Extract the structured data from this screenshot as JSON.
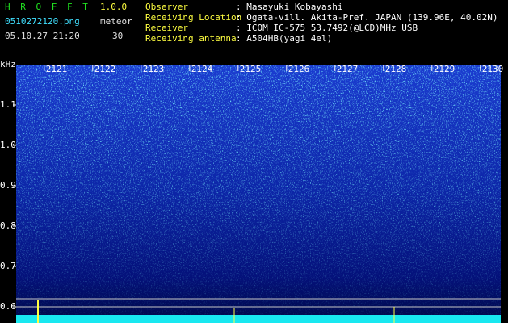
{
  "header": {
    "app": "H R O F F T",
    "version": "1.0.0",
    "file": "0510272120.png",
    "mode": "meteor",
    "datetime": "05.10.27 21:20",
    "count": "30",
    "fields": [
      {
        "label": "Observer",
        "value": ": Masayuki Kobayashi"
      },
      {
        "label": "Receiving Location",
        "value": ": Ogata-vill. Akita-Pref. JAPAN (139.96E, 40.02N)"
      },
      {
        "label": "Receiver",
        "value": ": ICOM IC-575 53.7492(@LCD)MHz USB"
      },
      {
        "label": "Receiving antenna",
        "value": ": A504HB(yagi 4el)"
      }
    ]
  },
  "chart_data": {
    "type": "spectrogram",
    "y_label": "kHz",
    "ylim": [
      0.564,
      1.2
    ],
    "yticks": [
      0.6,
      0.7,
      0.8,
      0.9,
      {
        "value": 1,
        "label": "1.0"
      },
      1.1
    ],
    "xlim": [
      2120.42,
      2130.42
    ],
    "xticks": [
      2121,
      2122,
      2123,
      2124,
      2125,
      2126,
      2127,
      2128,
      2129,
      2130
    ]
  }
}
